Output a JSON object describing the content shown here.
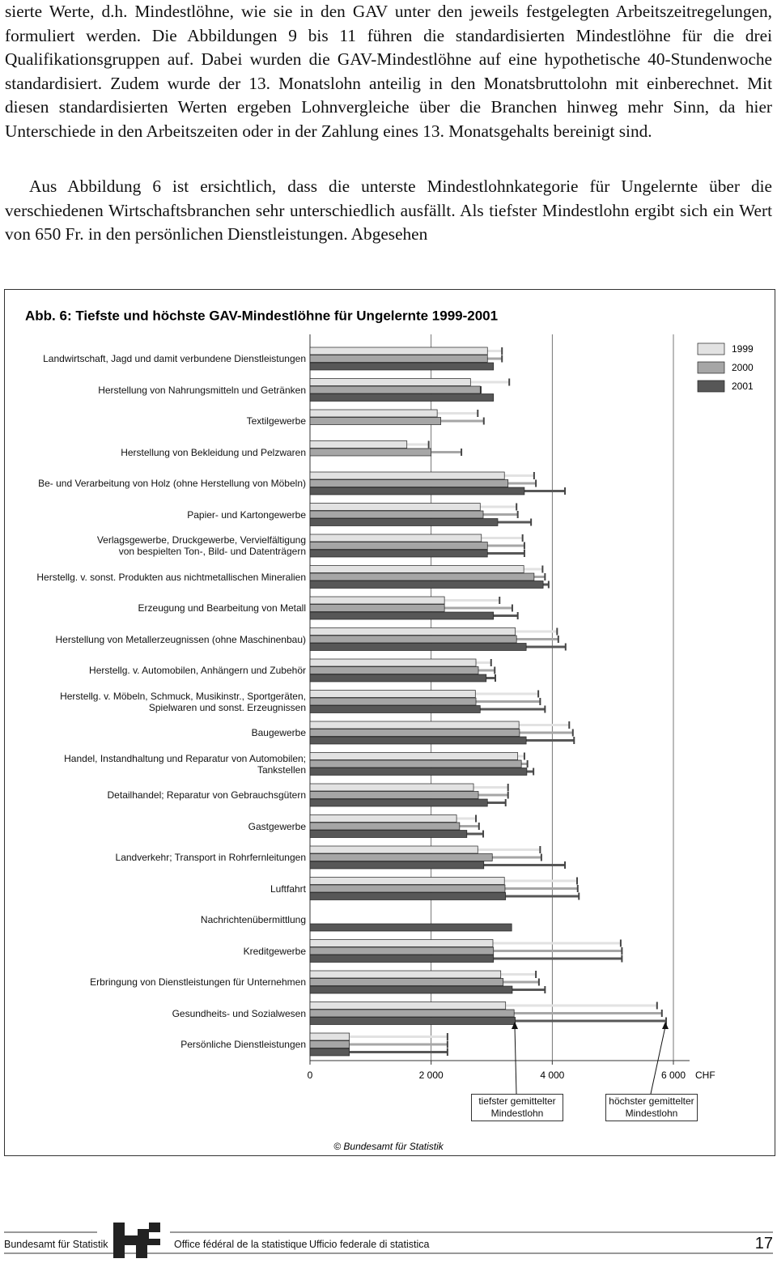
{
  "body": {
    "paragraphs": [
      "sierte Werte, d.h. Mindestlöhne, wie sie in den GAV unter den jeweils festgelegten Arbeitszeitregelungen, formuliert werden. Die Abbildungen 9 bis 11 führen die standardisierten Mindestlöhne für die drei Qualifikationsgruppen auf. Dabei wurden die GAV-Mindestlöhne auf eine hypothetische 40-Stundenwoche standardisiert. Zudem wurde der 13. Monatslohn anteilig in den Monatsbruttolohn mit einberechnet. Mit diesen standardisierten Werten ergeben Lohnvergleiche über die Branchen hinweg mehr Sinn, da hier Unterschiede in den Arbeitszeiten oder in der Zahlung eines 13. Monatsgehalts bereinigt sind.",
      "Aus Abbildung 6 ist ersichtlich, dass die unterste Mindestlohnkategorie für Ungelernte über die verschiedenen Wirtschaftsbranchen sehr unterschiedlich ausfällt. Als tiefster Mindestlohn ergibt sich ein Wert von 650 Fr. in den persönlichen Dienstleistungen. Abgesehen"
    ]
  },
  "chart_data": {
    "type": "range_bar",
    "title": "Abb. 6: Tiefste und höchste GAV-Mindestlöhne für Ungelernte 1999-2001",
    "categories": [
      "Landwirtschaft, Jagd und damit verbundene Dienstleistungen",
      "Herstellung von Nahrungsmitteln und Getränken",
      "Textilgewerbe",
      "Herstellung von Bekleidung und Pelzwaren",
      "Be- und Verarbeitung von Holz (ohne Herstellung von Möbeln)",
      "Papier- und Kartongewerbe",
      "Verlagsgewerbe, Druckgewerbe, Vervielfältigung\nvon bespielten Ton-, Bild- und Datenträgern",
      "Herstellg. v. sonst. Produkten aus nichtmetallischen Mineralien",
      "Erzeugung und Bearbeitung von Metall",
      "Herstellung von Metallerzeugnissen (ohne Maschinenbau)",
      "Herstellg. v. Automobilen, Anhängern und Zubehör",
      "Herstellg. v. Möbeln, Schmuck, Musikinstr., Sportgeräten,\nSpielwaren und sonst. Erzeugnissen",
      "Baugewerbe",
      "Handel, Instandhaltung und Reparatur von Automobilen;\nTankstellen",
      "Detailhandel; Reparatur von Gebrauchsgütern",
      "Gastgewerbe",
      "Landverkehr; Transport in Rohrfernleitungen",
      "Luftfahrt",
      "Nachrichtenübermittlung",
      "Kreditgewerbe",
      "Erbringung von Dienstleistungen für Unternehmen",
      "Gesundheits- und Sozialwesen",
      "Persönliche Dienstleistungen"
    ],
    "series": [
      {
        "name": "1999",
        "color": "#e2e2e2",
        "values": [
          2930,
          2650,
          2100,
          1600,
          3210,
          2810,
          2830,
          3530,
          2220,
          3390,
          2740,
          2730,
          3450,
          3430,
          2700,
          2420,
          2770,
          3210,
          null,
          3020,
          3150,
          3230,
          650
        ],
        "high": [
          3170,
          3290,
          2770,
          1960,
          3700,
          3410,
          3510,
          3840,
          3130,
          4080,
          2990,
          3770,
          4280,
          3540,
          3270,
          2740,
          3800,
          4410,
          null,
          5130,
          3730,
          5730,
          2270
        ]
      },
      {
        "name": "2000",
        "color": "#a6a6a6",
        "values": [
          2930,
          2810,
          2160,
          2000,
          3270,
          2860,
          2930,
          3700,
          2220,
          3410,
          2780,
          2740,
          3460,
          3490,
          2780,
          2470,
          3010,
          3220,
          null,
          3030,
          3190,
          3370,
          650
        ],
        "high": [
          3170,
          2820,
          2870,
          2500,
          3730,
          3430,
          3540,
          3880,
          3340,
          4100,
          3050,
          3800,
          4340,
          3590,
          3270,
          2790,
          3820,
          4420,
          null,
          5150,
          3780,
          5810,
          2270
        ]
      },
      {
        "name": "2001",
        "color": "#575757",
        "values": [
          3030,
          3030,
          null,
          null,
          3540,
          3100,
          2930,
          3850,
          3030,
          3570,
          2910,
          2810,
          3570,
          3580,
          2930,
          2590,
          2870,
          3230,
          3330,
          3030,
          3340,
          3390,
          650
        ],
        "high": [
          3030,
          3030,
          null,
          null,
          4210,
          3650,
          3540,
          3940,
          3430,
          4220,
          3060,
          3880,
          4360,
          3690,
          3230,
          2860,
          4210,
          4440,
          3330,
          5150,
          3880,
          5880,
          2270
        ]
      }
    ],
    "xlim": [
      0,
      6000
    ],
    "xticks": [
      0,
      {
        "value": 2000,
        "label": "2 000"
      },
      {
        "value": 4000,
        "label": "4 000"
      },
      {
        "value": 6000,
        "label": "6 000"
      }
    ],
    "grid": true,
    "unit": "CHF",
    "annotations": [
      "tiefster gemittelter\nMindestlohn",
      "höchster gemittelter\nMindestlohn"
    ],
    "source": "© Bundesamt für Statistik"
  },
  "footer": {
    "left": "Bundesamt für Statistik",
    "french": "Office fédéral de la statistique",
    "italian": "Ufficio federale di statistica",
    "page": "17"
  }
}
